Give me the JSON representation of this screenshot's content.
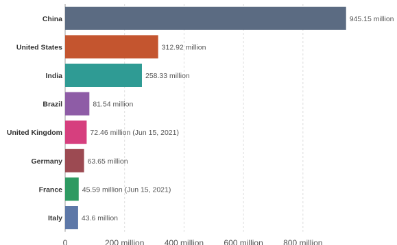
{
  "chart_data": {
    "type": "bar",
    "orientation": "horizontal",
    "title": "",
    "xlabel": "",
    "ylabel": "",
    "grid": true,
    "legend": "none",
    "xlim": [
      0,
      1000
    ],
    "x_ticks": [
      0,
      200,
      400,
      600,
      800
    ],
    "x_tick_labels": [
      "0",
      "200 million",
      "400 million",
      "600 million",
      "800 million"
    ],
    "unit": "million",
    "categories": [
      "China",
      "United States",
      "India",
      "Brazil",
      "United Kingdom",
      "Germany",
      "France",
      "Italy"
    ],
    "values": [
      945.15,
      312.92,
      258.33,
      81.54,
      72.46,
      63.65,
      45.59,
      43.6
    ],
    "value_labels": [
      "945.15 million",
      "312.92 million",
      "258.33 million",
      "81.54 million",
      "72.46 million (Jun 15, 2021)",
      "63.65 million",
      "45.59 million (Jun 15, 2021)",
      "43.6 million"
    ],
    "colors": [
      "#5b6b82",
      "#c4552f",
      "#2f9b94",
      "#8e5ca6",
      "#d63f7e",
      "#9c4a52",
      "#2e9a62",
      "#5d78a8"
    ]
  }
}
